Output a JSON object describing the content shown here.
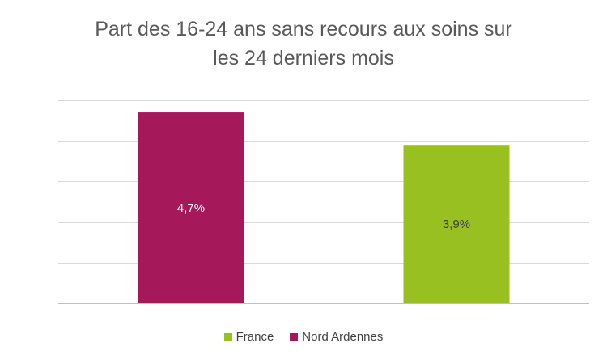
{
  "chart_data": {
    "type": "bar",
    "title_lines": [
      "Part des 16-24 ans sans recours aux soins sur",
      "les 24 derniers mois"
    ],
    "categories": [
      "Nord Ardennes",
      "France"
    ],
    "values": [
      4.7,
      3.9
    ],
    "data_labels": [
      "4,7%",
      "3,9%"
    ],
    "colors": [
      "#A5185A",
      "#97C020"
    ],
    "label_colors": [
      "#ffffff",
      "#404040"
    ],
    "ylim": [
      0,
      5
    ],
    "gridlines": true,
    "legend_position": "bottom",
    "legend": [
      {
        "label": "France",
        "color": "#97C020"
      },
      {
        "label": "Nord Ardennes",
        "color": "#A5185A"
      }
    ]
  }
}
